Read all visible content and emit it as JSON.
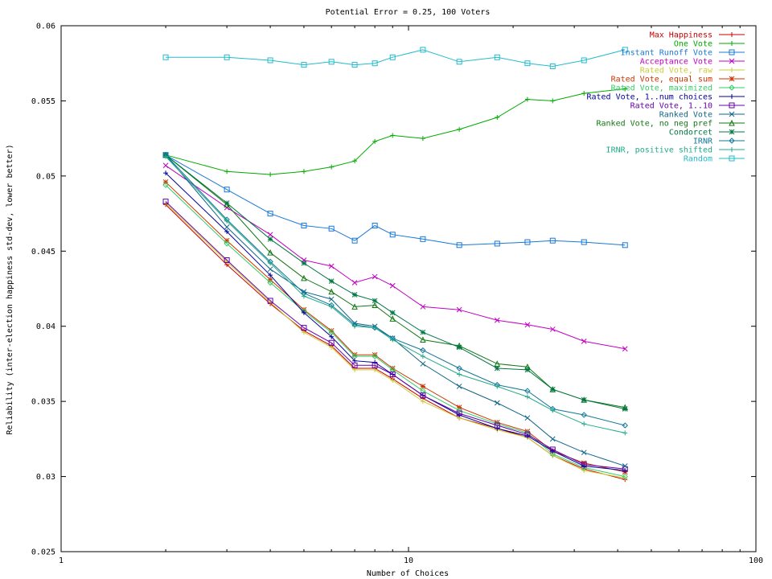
{
  "chart_data": {
    "type": "line",
    "title": "Potential Error = 0.25, 100 Voters",
    "xlabel": "Number of Choices",
    "ylabel": "Reliability (inter-election happiness std-dev, lower better)",
    "x_scale": "log",
    "xlim": [
      1,
      100
    ],
    "ylim": [
      0.025,
      0.06
    ],
    "x_ticks": [
      1,
      10,
      100
    ],
    "x_tick_labels": [
      "1",
      "10",
      "100"
    ],
    "y_ticks": [
      0.025,
      0.03,
      0.035,
      0.04,
      0.045,
      0.05,
      0.055,
      0.06
    ],
    "y_tick_labels": [
      "0.025",
      "0.03",
      "0.035",
      "0.04",
      "0.045",
      "0.05",
      "0.055",
      "0.06"
    ],
    "grid": false,
    "legend_position": "top-right",
    "x": [
      2,
      3,
      4,
      5,
      6,
      7,
      8,
      9,
      11,
      14,
      18,
      22,
      26,
      32,
      42
    ],
    "series": [
      {
        "name": "Max Happiness",
        "color": "#cc0000",
        "marker": "plus",
        "values": [
          0.0481,
          0.0441,
          0.0415,
          0.0397,
          0.0387,
          0.0372,
          0.0372,
          0.0365,
          0.0352,
          0.0339,
          0.0332,
          0.0326,
          0.0314,
          0.0305,
          0.0298
        ]
      },
      {
        "name": "One Vote",
        "color": "#00aa00",
        "marker": "plus",
        "values": [
          0.0514,
          0.0503,
          0.0501,
          0.0503,
          0.0506,
          0.051,
          0.0523,
          0.0527,
          0.0525,
          0.0531,
          0.0539,
          0.0551,
          0.055,
          0.0555,
          0.0558
        ]
      },
      {
        "name": "Instant Runoff Vote",
        "color": "#1878d8",
        "marker": "square",
        "values": [
          0.0514,
          0.0491,
          0.0475,
          0.0467,
          0.0465,
          0.0457,
          0.0467,
          0.0461,
          0.0458,
          0.0454,
          0.0455,
          0.0456,
          0.0457,
          0.0456,
          0.0454
        ]
      },
      {
        "name": "Acceptance Vote",
        "color": "#c000c0",
        "marker": "x",
        "values": [
          0.0507,
          0.0479,
          0.0461,
          0.0444,
          0.044,
          0.0429,
          0.0433,
          0.0427,
          0.0413,
          0.0411,
          0.0404,
          0.0401,
          0.0398,
          0.039,
          0.0385
        ]
      },
      {
        "name": "Rated Vote, raw",
        "color": "#cccc33",
        "marker": "plus",
        "values": [
          0.0482,
          0.0443,
          0.0416,
          0.0396,
          0.0386,
          0.0371,
          0.0371,
          0.0364,
          0.035,
          0.0339,
          0.0331,
          0.0326,
          0.0314,
          0.0304,
          0.0299
        ]
      },
      {
        "name": "Rated Vote, equal sum",
        "color": "#cc3300",
        "marker": "star",
        "values": [
          0.0496,
          0.0457,
          0.0431,
          0.0411,
          0.0397,
          0.0381,
          0.0381,
          0.0372,
          0.036,
          0.0346,
          0.0336,
          0.033,
          0.0317,
          0.0309,
          0.0303
        ]
      },
      {
        "name": "Rated Vote, maximized",
        "color": "#33cc66",
        "marker": "diamond",
        "values": [
          0.0494,
          0.0455,
          0.0429,
          0.041,
          0.0396,
          0.038,
          0.038,
          0.0371,
          0.0357,
          0.0344,
          0.0335,
          0.0329,
          0.0315,
          0.0306,
          0.03
        ]
      },
      {
        "name": "Rated Vote, 1..num choices",
        "color": "#000099",
        "marker": "plus",
        "values": [
          0.0502,
          0.0463,
          0.0434,
          0.0409,
          0.0393,
          0.0377,
          0.0376,
          0.0368,
          0.0354,
          0.0341,
          0.0332,
          0.0327,
          0.0317,
          0.0307,
          0.0304
        ]
      },
      {
        "name": "Rated Vote, 1..10",
        "color": "#6600aa",
        "marker": "square",
        "values": [
          0.0483,
          0.0444,
          0.0417,
          0.0399,
          0.0389,
          0.0374,
          0.0374,
          0.0368,
          0.0354,
          0.0342,
          0.0334,
          0.0328,
          0.0318,
          0.0308,
          0.0305
        ]
      },
      {
        "name": "Ranked Vote",
        "color": "#116688",
        "marker": "x",
        "values": [
          0.0514,
          0.0466,
          0.0438,
          0.0423,
          0.0418,
          0.0402,
          0.04,
          0.0392,
          0.0375,
          0.036,
          0.0349,
          0.0339,
          0.0325,
          0.0316,
          0.0307
        ]
      },
      {
        "name": "Ranked Vote, no neg pref",
        "color": "#117711",
        "marker": "triangle",
        "values": [
          0.0514,
          0.0481,
          0.0449,
          0.0432,
          0.0423,
          0.0413,
          0.0414,
          0.0405,
          0.0391,
          0.0387,
          0.0375,
          0.0373,
          0.0358,
          0.0351,
          0.0346
        ]
      },
      {
        "name": "Condorcet",
        "color": "#007744",
        "marker": "star",
        "values": [
          0.0514,
          0.0482,
          0.0458,
          0.0442,
          0.043,
          0.0421,
          0.0417,
          0.0409,
          0.0396,
          0.0386,
          0.0372,
          0.0371,
          0.0358,
          0.0351,
          0.0345
        ]
      },
      {
        "name": "IRNR",
        "color": "#117799",
        "marker": "diamond",
        "values": [
          0.0514,
          0.0471,
          0.0443,
          0.0422,
          0.0414,
          0.0401,
          0.0399,
          0.0392,
          0.0384,
          0.0372,
          0.0361,
          0.0357,
          0.0345,
          0.0341,
          0.0334
        ]
      },
      {
        "name": "IRNR, positive shifted",
        "color": "#22aa88",
        "marker": "plus",
        "values": [
          0.0513,
          0.047,
          0.0442,
          0.042,
          0.0413,
          0.04,
          0.0399,
          0.0391,
          0.038,
          0.0368,
          0.036,
          0.0353,
          0.0344,
          0.0335,
          0.0329
        ]
      },
      {
        "name": "Random",
        "color": "#22bbcc",
        "marker": "square",
        "values": [
          0.0579,
          0.0579,
          0.0577,
          0.0574,
          0.0576,
          0.0574,
          0.0575,
          0.0579,
          0.0584,
          0.0576,
          0.0579,
          0.0575,
          0.0573,
          0.0577,
          0.0584
        ]
      }
    ]
  }
}
